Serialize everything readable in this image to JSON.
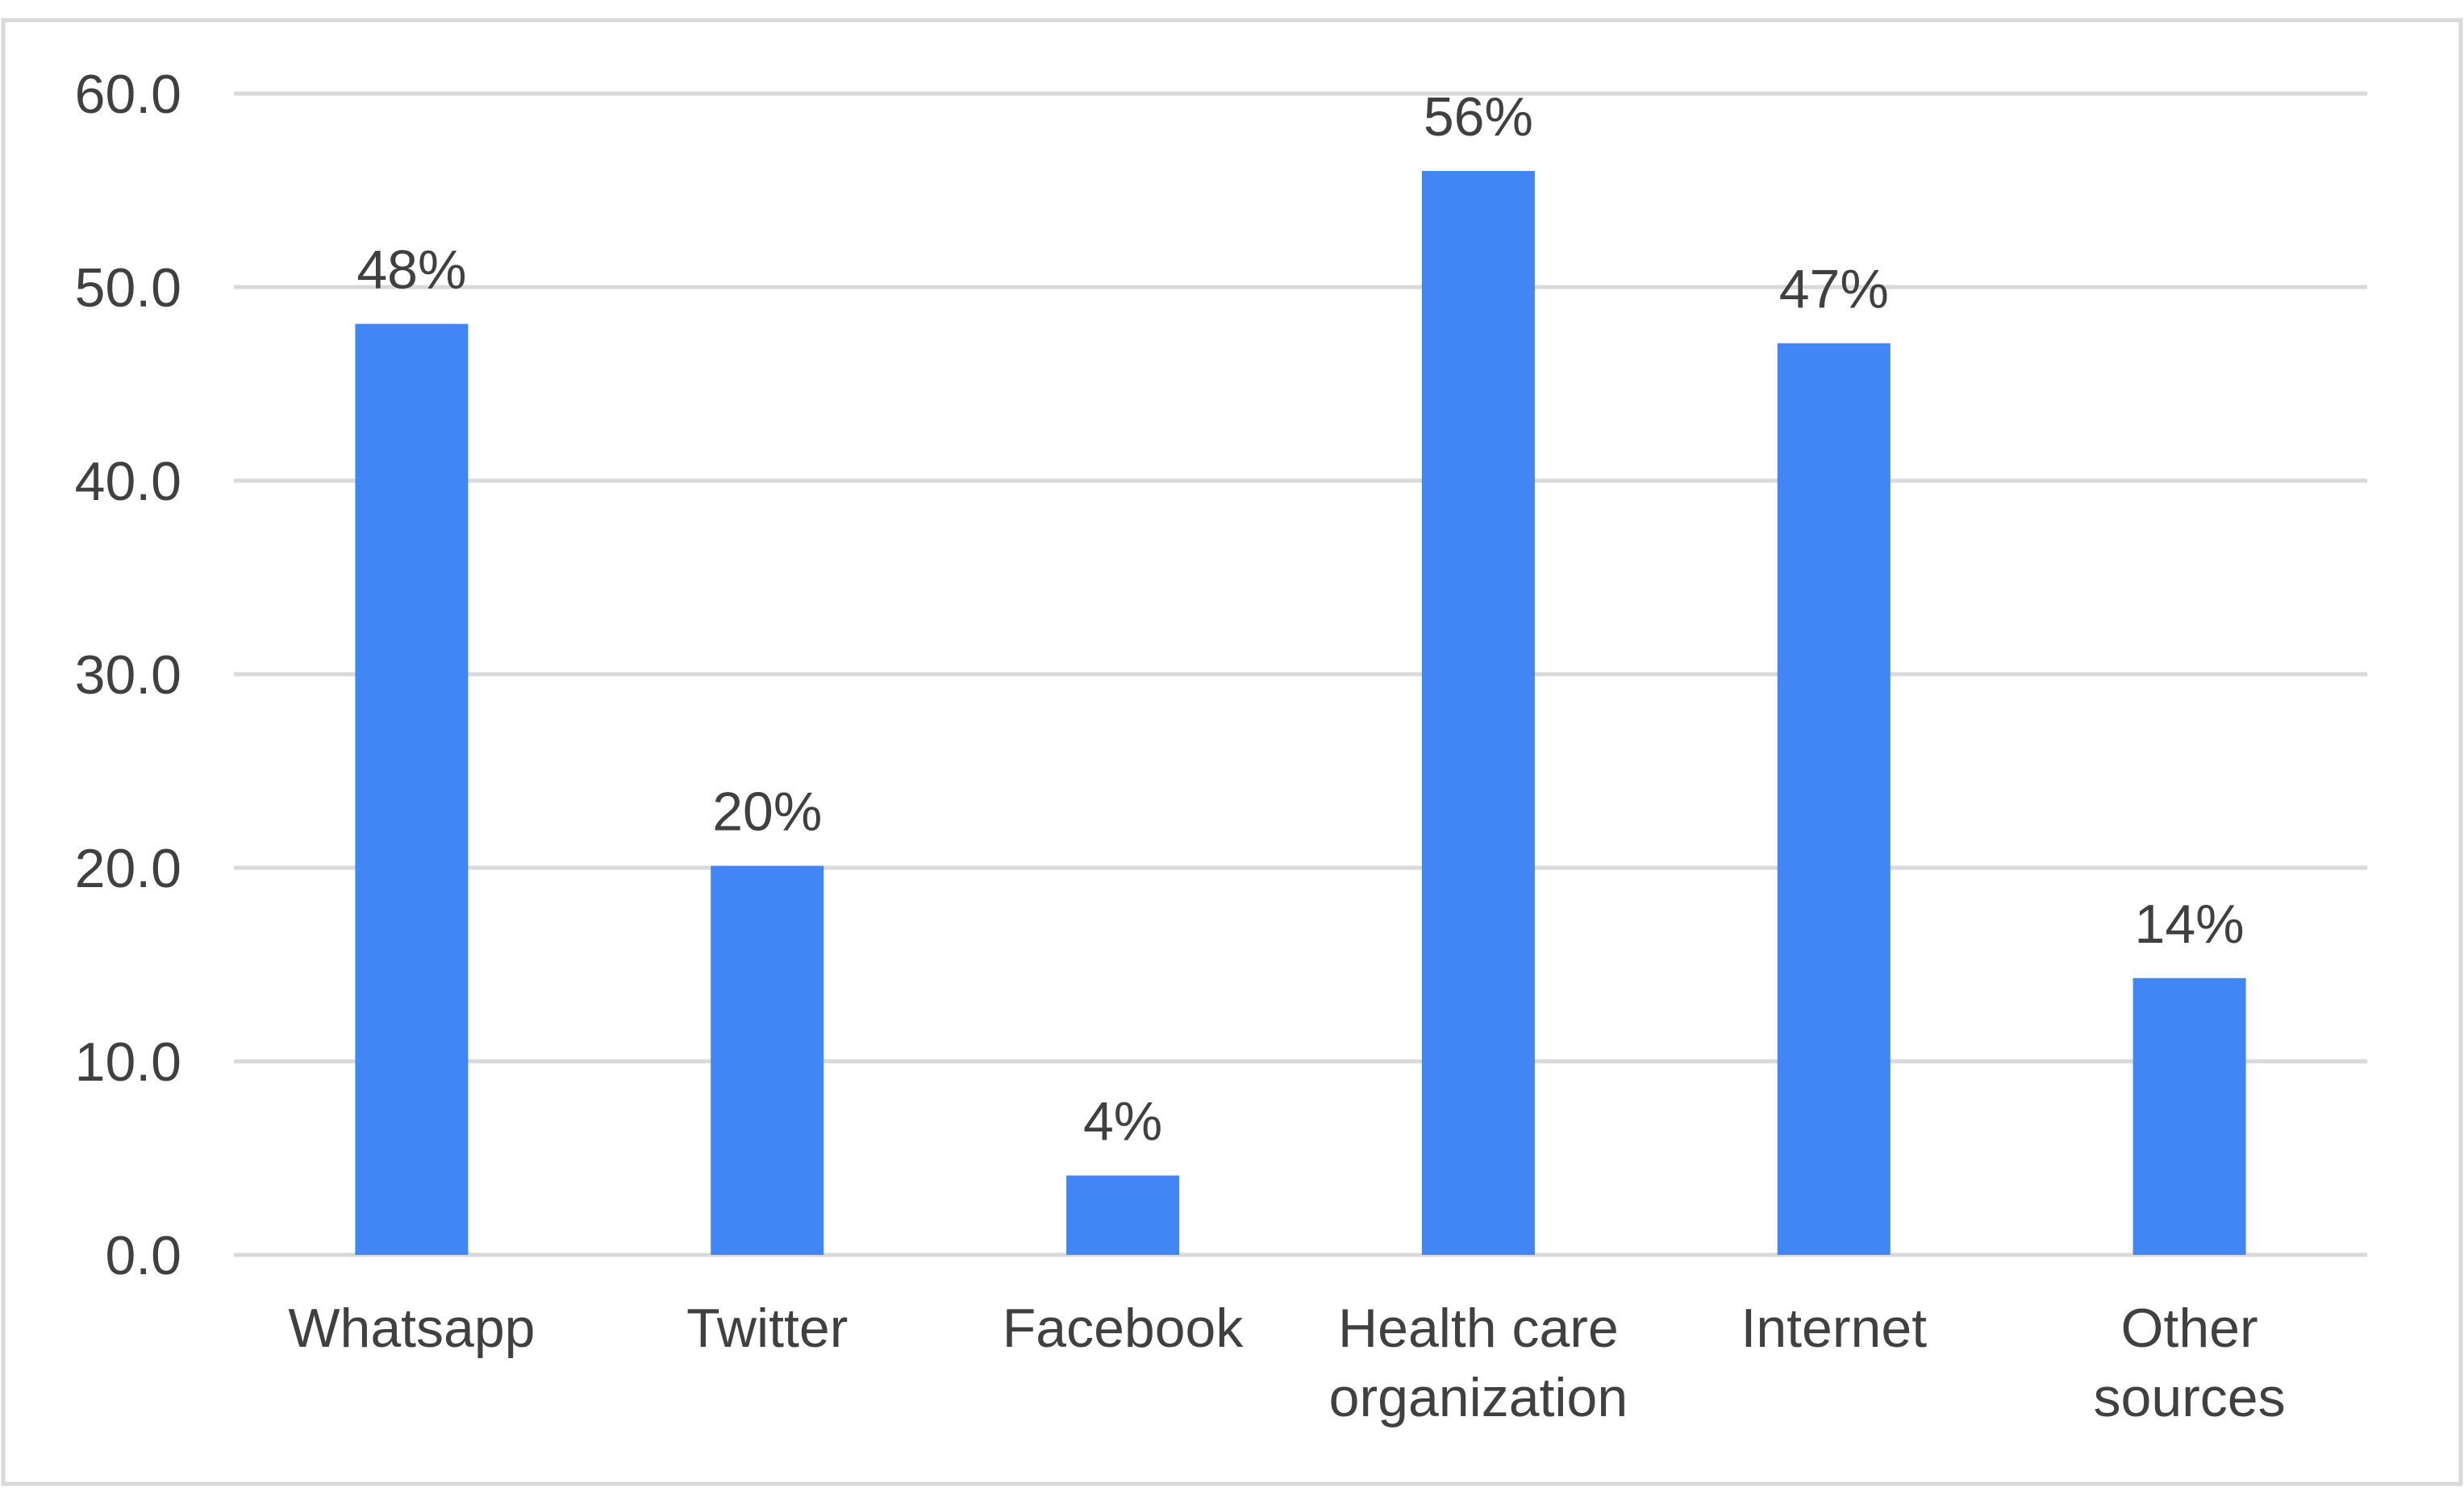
{
  "chart_data": {
    "type": "bar",
    "categories": [
      "Whatsapp",
      "Twitter",
      "Facebook",
      "Health care organization",
      "Internet",
      "Other sources"
    ],
    "category_lines": [
      [
        "Whatsapp"
      ],
      [
        "Twitter"
      ],
      [
        "Facebook"
      ],
      [
        "Health care",
        "organization"
      ],
      [
        "Internet"
      ],
      [
        "Other",
        "sources"
      ]
    ],
    "values": [
      48.1,
      20.1,
      4.1,
      56.0,
      47.1,
      14.3
    ],
    "data_labels": [
      "48%",
      "20%",
      "4%",
      "56%",
      "47%",
      "14%"
    ],
    "y_ticks": [
      "0.0",
      "10.0",
      "20.0",
      "30.0",
      "40.0",
      "50.0",
      "60.0"
    ],
    "ylim": [
      0,
      60
    ],
    "grid": true,
    "title": "",
    "xlabel": "",
    "ylabel": "",
    "colors": {
      "bar": "#4285F4",
      "grid": "#d9d9d9",
      "frame": "#d9d9d9",
      "text": "#404040"
    }
  }
}
